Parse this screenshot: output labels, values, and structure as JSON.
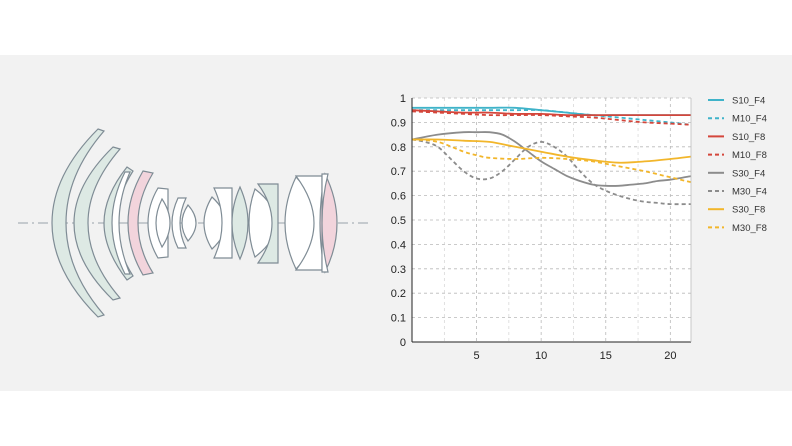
{
  "colors": {
    "S10_F4": "#3fb3c9",
    "M10_F4": "#3fb3c9",
    "S10_F8": "#d4463b",
    "M10_F8": "#d4463b",
    "S30_F4": "#8c8c8c",
    "M30_F4": "#8c8c8c",
    "S30_F8": "#f2b62b",
    "M30_F8": "#f2b62b",
    "lens_fill_green": "#dde9e4",
    "lens_fill_pink": "#f2d4dc",
    "lens_stroke": "#7f8c95",
    "band": "#f2f2f2"
  },
  "lens_diagram": {
    "type": "optical cross-section",
    "icon": "lens-elements-diagram"
  },
  "chart_data": {
    "type": "line",
    "title": "",
    "xlabel": "",
    "ylabel": "",
    "xlim": [
      0,
      21.6
    ],
    "ylim": [
      0,
      1
    ],
    "grid": true,
    "legend_position": "right",
    "x_ticks": [
      "5",
      "10",
      "15",
      "20"
    ],
    "y_ticks": [
      "0",
      "0.1",
      "0.2",
      "0.3",
      "0.4",
      "0.5",
      "0.6",
      "0.7",
      "0.8",
      "0.9",
      "1"
    ],
    "series": [
      {
        "name": "S10_F4",
        "dash": false,
        "x": [
          0,
          2,
          4,
          6,
          8,
          10,
          12,
          14,
          16,
          18,
          20,
          21.6
        ],
        "y": [
          0.96,
          0.96,
          0.96,
          0.96,
          0.96,
          0.95,
          0.94,
          0.93,
          0.93,
          0.93,
          0.93,
          0.93
        ]
      },
      {
        "name": "M10_F4",
        "dash": true,
        "x": [
          0,
          2,
          4,
          6,
          8,
          10,
          12,
          14,
          16,
          18,
          20,
          21.6
        ],
        "y": [
          0.95,
          0.95,
          0.95,
          0.95,
          0.95,
          0.95,
          0.94,
          0.93,
          0.92,
          0.91,
          0.9,
          0.89
        ]
      },
      {
        "name": "S10_F8",
        "dash": false,
        "x": [
          0,
          2,
          4,
          6,
          8,
          10,
          12,
          14,
          16,
          18,
          20,
          21.6
        ],
        "y": [
          0.95,
          0.945,
          0.94,
          0.94,
          0.935,
          0.935,
          0.93,
          0.93,
          0.93,
          0.93,
          0.93,
          0.93
        ]
      },
      {
        "name": "M10_F8",
        "dash": true,
        "x": [
          0,
          2,
          4,
          6,
          8,
          10,
          12,
          14,
          16,
          18,
          20,
          21.6
        ],
        "y": [
          0.945,
          0.94,
          0.935,
          0.93,
          0.93,
          0.93,
          0.925,
          0.92,
          0.91,
          0.9,
          0.895,
          0.89
        ]
      },
      {
        "name": "S30_F4",
        "dash": false,
        "x": [
          0,
          2,
          4,
          5,
          6,
          7,
          8,
          9,
          10,
          11,
          12,
          13,
          14,
          15,
          16,
          17,
          18,
          19,
          20,
          21.6
        ],
        "y": [
          0.83,
          0.85,
          0.86,
          0.86,
          0.86,
          0.85,
          0.82,
          0.78,
          0.74,
          0.71,
          0.68,
          0.66,
          0.645,
          0.64,
          0.64,
          0.645,
          0.65,
          0.66,
          0.665,
          0.68
        ]
      },
      {
        "name": "M30_F4",
        "dash": true,
        "x": [
          0,
          1,
          2,
          3,
          4,
          5,
          6,
          7,
          8,
          9,
          10,
          11,
          12,
          13,
          14,
          15,
          16,
          17,
          18,
          19,
          20,
          21.6
        ],
        "y": [
          0.83,
          0.82,
          0.8,
          0.75,
          0.7,
          0.67,
          0.67,
          0.7,
          0.75,
          0.8,
          0.82,
          0.8,
          0.76,
          0.7,
          0.65,
          0.62,
          0.6,
          0.585,
          0.575,
          0.57,
          0.565,
          0.565
        ]
      },
      {
        "name": "S30_F8",
        "dash": false,
        "x": [
          0,
          2,
          4,
          6,
          8,
          10,
          12,
          14,
          16,
          18,
          20,
          21.6
        ],
        "y": [
          0.83,
          0.83,
          0.825,
          0.82,
          0.8,
          0.78,
          0.76,
          0.745,
          0.735,
          0.74,
          0.75,
          0.76
        ]
      },
      {
        "name": "M30_F8",
        "dash": true,
        "x": [
          0,
          2,
          4,
          5,
          6,
          8,
          10,
          12,
          14,
          16,
          18,
          20,
          21.6
        ],
        "y": [
          0.83,
          0.82,
          0.78,
          0.765,
          0.755,
          0.75,
          0.755,
          0.75,
          0.74,
          0.72,
          0.7,
          0.675,
          0.655
        ]
      }
    ]
  }
}
